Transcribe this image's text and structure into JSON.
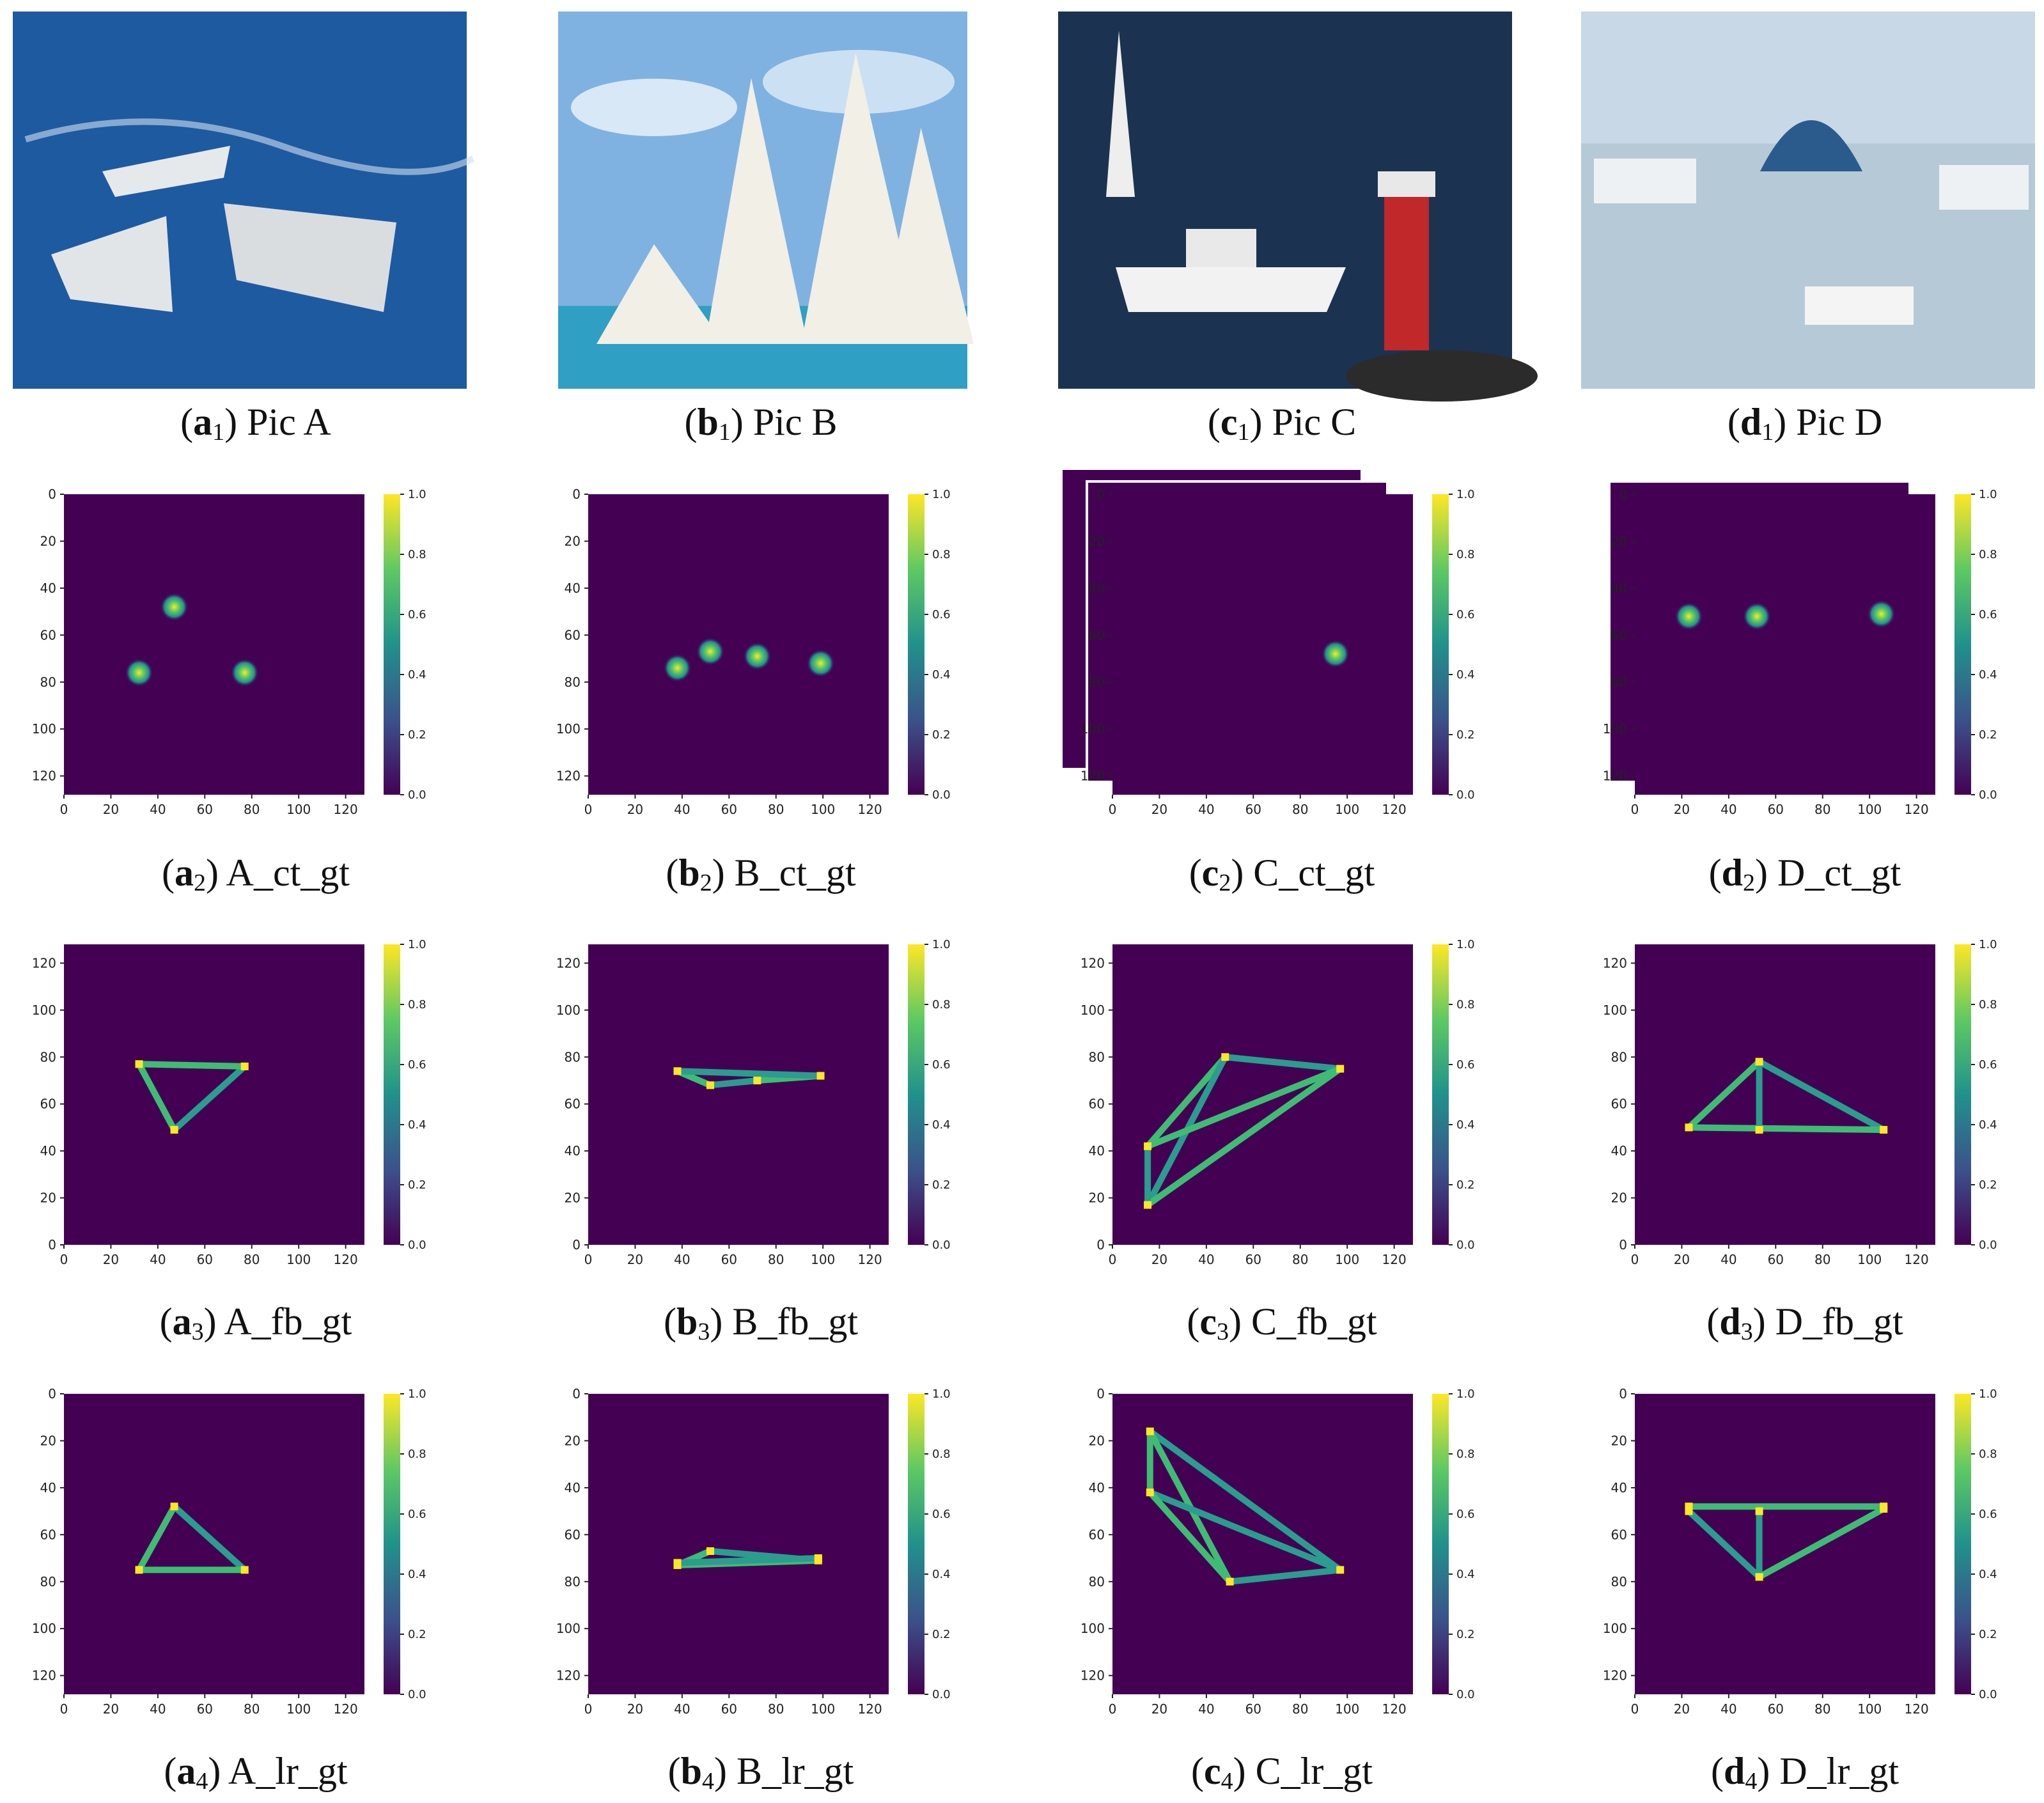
{
  "figure": {
    "columns": [
      "a",
      "b",
      "c",
      "d"
    ],
    "captions": [
      [
        {
          "letter": "a",
          "sub": "1",
          "text": "Pic A"
        },
        {
          "letter": "b",
          "sub": "1",
          "text": "Pic B"
        },
        {
          "letter": "c",
          "sub": "1",
          "text": "Pic C"
        },
        {
          "letter": "d",
          "sub": "1",
          "text": "Pic D"
        }
      ],
      [
        {
          "letter": "a",
          "sub": "2",
          "text": "A_ct_gt"
        },
        {
          "letter": "b",
          "sub": "2",
          "text": "B_ct_gt"
        },
        {
          "letter": "c",
          "sub": "2",
          "text": "C_ct_gt"
        },
        {
          "letter": "d",
          "sub": "2",
          "text": "D_ct_gt"
        }
      ],
      [
        {
          "letter": "a",
          "sub": "3",
          "text": "A_fb_gt"
        },
        {
          "letter": "b",
          "sub": "3",
          "text": "B_fb_gt"
        },
        {
          "letter": "c",
          "sub": "3",
          "text": "C_fb_gt"
        },
        {
          "letter": "d",
          "sub": "3",
          "text": "D_fb_gt"
        }
      ],
      [
        {
          "letter": "a",
          "sub": "4",
          "text": "A_lr_gt"
        },
        {
          "letter": "b",
          "sub": "4",
          "text": "B_lr_gt"
        },
        {
          "letter": "c",
          "sub": "4",
          "text": "C_lr_gt"
        },
        {
          "letter": "d",
          "sub": "4",
          "text": "D_lr_gt"
        }
      ]
    ],
    "photos": [
      {
        "scene": "warships",
        "sky": "#1a4f8a",
        "sea": "#1e5aa0"
      },
      {
        "scene": "sailboats",
        "sky": "#7fb2e0",
        "sea": "#2f9fc4"
      },
      {
        "scene": "lighthouse",
        "sky": "#17304f",
        "sea": "#1b3350"
      },
      {
        "scene": "harbor",
        "sky": "#c9d8e6",
        "sea": "#b6c9d6"
      }
    ],
    "colors": {
      "viridis_low": "#440154",
      "viridis_mid": "#21918c",
      "viridis_high": "#fde725"
    }
  },
  "chart_data": [
    {
      "type": "heatmap",
      "id": "A_ct_gt",
      "xlim": [
        0,
        128
      ],
      "ylim": [
        0,
        128
      ],
      "xticks": [
        "0",
        "20",
        "40",
        "60",
        "80",
        "100",
        "120"
      ],
      "yticks": [
        "0",
        "20",
        "40",
        "60",
        "80",
        "100",
        "120"
      ],
      "colorbar": [
        "0.0",
        "0.2",
        "0.4",
        "0.6",
        "0.8",
        "1.0"
      ],
      "points": [
        [
          47,
          48
        ],
        [
          32,
          76
        ],
        [
          77,
          76
        ]
      ]
    },
    {
      "type": "heatmap",
      "id": "B_ct_gt",
      "xlim": [
        0,
        128
      ],
      "ylim": [
        0,
        128
      ],
      "xticks": [
        "0",
        "20",
        "40",
        "60",
        "80",
        "100",
        "120"
      ],
      "yticks": [
        "0",
        "20",
        "40",
        "60",
        "80",
        "100",
        "120"
      ],
      "colorbar": [
        "0.0",
        "0.2",
        "0.4",
        "0.6",
        "0.8",
        "1.0"
      ],
      "points": [
        [
          38,
          74
        ],
        [
          52,
          67
        ],
        [
          72,
          69
        ],
        [
          99,
          72
        ]
      ]
    },
    {
      "type": "heatmap",
      "id": "C_ct_gt",
      "xlim": [
        0,
        128
      ],
      "ylim": [
        0,
        128
      ],
      "xticks": [
        "0",
        "20",
        "40",
        "60",
        "80",
        "100",
        "120"
      ],
      "yticks": [
        "0",
        "20",
        "40",
        "60",
        "80",
        "100",
        "120"
      ],
      "colorbar": [
        "0.0",
        "0.2",
        "0.4",
        "0.6",
        "0.8",
        "1.0"
      ],
      "points": [
        [
          95,
          68
        ]
      ],
      "stacked_layers": 2
    },
    {
      "type": "heatmap",
      "id": "D_ct_gt",
      "xlim": [
        0,
        128
      ],
      "ylim": [
        0,
        128
      ],
      "xticks": [
        "0",
        "20",
        "40",
        "60",
        "80",
        "100",
        "120"
      ],
      "yticks": [
        "0",
        "20",
        "40",
        "60",
        "80",
        "100",
        "120"
      ],
      "colorbar": [
        "0.0",
        "0.2",
        "0.4",
        "0.6",
        "0.8",
        "1.0"
      ],
      "points": [
        [
          23,
          52
        ],
        [
          52,
          52
        ],
        [
          105,
          51
        ]
      ],
      "stacked_layers": 1
    },
    {
      "type": "heatmap",
      "id": "A_fb_gt",
      "yinverted": true,
      "xlim": [
        0,
        128
      ],
      "ylim": [
        0,
        128
      ],
      "xticks": [
        "0",
        "20",
        "40",
        "60",
        "80",
        "100",
        "120"
      ],
      "yticks": [
        "0",
        "20",
        "40",
        "60",
        "80",
        "100",
        "120"
      ],
      "colorbar": [
        "0.0",
        "0.2",
        "0.4",
        "0.6",
        "0.8",
        "1.0"
      ],
      "segments": [
        [
          32,
          77,
          47,
          49
        ],
        [
          47,
          49,
          77,
          76
        ],
        [
          32,
          77,
          77,
          76
        ]
      ]
    },
    {
      "type": "heatmap",
      "id": "B_fb_gt",
      "yinverted": true,
      "xlim": [
        0,
        128
      ],
      "ylim": [
        0,
        128
      ],
      "xticks": [
        "0",
        "20",
        "40",
        "60",
        "80",
        "100",
        "120"
      ],
      "yticks": [
        "0",
        "20",
        "40",
        "60",
        "80",
        "100",
        "120"
      ],
      "colorbar": [
        "0.0",
        "0.2",
        "0.4",
        "0.6",
        "0.8",
        "1.0"
      ],
      "segments": [
        [
          38,
          74,
          52,
          68
        ],
        [
          52,
          68,
          72,
          70
        ],
        [
          72,
          70,
          99,
          72
        ],
        [
          38,
          74,
          99,
          72
        ]
      ]
    },
    {
      "type": "heatmap",
      "id": "C_fb_gt",
      "yinverted": true,
      "xlim": [
        0,
        128
      ],
      "ylim": [
        0,
        128
      ],
      "xticks": [
        "0",
        "20",
        "40",
        "60",
        "80",
        "100",
        "120"
      ],
      "yticks": [
        "0",
        "20",
        "40",
        "60",
        "80",
        "100",
        "120"
      ],
      "colorbar": [
        "0.0",
        "0.2",
        "0.4",
        "0.6",
        "0.8",
        "1.0"
      ],
      "segments": [
        [
          15,
          42,
          48,
          80
        ],
        [
          15,
          17,
          48,
          80
        ],
        [
          15,
          17,
          97,
          75
        ],
        [
          48,
          80,
          97,
          75
        ],
        [
          15,
          42,
          97,
          75
        ],
        [
          15,
          17,
          15,
          42
        ]
      ]
    },
    {
      "type": "heatmap",
      "id": "D_fb_gt",
      "yinverted": true,
      "xlim": [
        0,
        128
      ],
      "ylim": [
        0,
        128
      ],
      "xticks": [
        "0",
        "20",
        "40",
        "60",
        "80",
        "100",
        "120"
      ],
      "yticks": [
        "0",
        "20",
        "40",
        "60",
        "80",
        "100",
        "120"
      ],
      "colorbar": [
        "0.0",
        "0.2",
        "0.4",
        "0.6",
        "0.8",
        "1.0"
      ],
      "segments": [
        [
          23,
          50,
          53,
          78
        ],
        [
          53,
          78,
          106,
          49
        ],
        [
          23,
          50,
          106,
          49
        ],
        [
          53,
          49,
          53,
          78
        ]
      ]
    },
    {
      "type": "heatmap",
      "id": "A_lr_gt",
      "xlim": [
        0,
        128
      ],
      "ylim": [
        0,
        128
      ],
      "xticks": [
        "0",
        "20",
        "40",
        "60",
        "80",
        "100",
        "120"
      ],
      "yticks": [
        "0",
        "20",
        "40",
        "60",
        "80",
        "100",
        "120"
      ],
      "colorbar": [
        "0.0",
        "0.2",
        "0.4",
        "0.6",
        "0.8",
        "1.0"
      ],
      "segments": [
        [
          32,
          75,
          47,
          48
        ],
        [
          47,
          48,
          77,
          75
        ],
        [
          32,
          75,
          77,
          75
        ]
      ]
    },
    {
      "type": "heatmap",
      "id": "B_lr_gt",
      "xlim": [
        0,
        128
      ],
      "ylim": [
        0,
        128
      ],
      "xticks": [
        "0",
        "20",
        "40",
        "60",
        "80",
        "100",
        "120"
      ],
      "yticks": [
        "0",
        "20",
        "40",
        "60",
        "80",
        "100",
        "120"
      ],
      "colorbar": [
        "0.0",
        "0.2",
        "0.4",
        "0.6",
        "0.8",
        "1.0"
      ],
      "segments": [
        [
          38,
          73,
          52,
          67
        ],
        [
          52,
          67,
          98,
          71
        ],
        [
          38,
          73,
          98,
          71
        ],
        [
          38,
          72,
          98,
          70
        ]
      ]
    },
    {
      "type": "heatmap",
      "id": "C_lr_gt",
      "xlim": [
        0,
        128
      ],
      "ylim": [
        0,
        128
      ],
      "xticks": [
        "0",
        "20",
        "40",
        "60",
        "80",
        "100",
        "120"
      ],
      "yticks": [
        "0",
        "20",
        "40",
        "60",
        "80",
        "100",
        "120"
      ],
      "colorbar": [
        "0.0",
        "0.2",
        "0.4",
        "0.6",
        "0.8",
        "1.0"
      ],
      "segments": [
        [
          16,
          16,
          16,
          42
        ],
        [
          16,
          16,
          97,
          75
        ],
        [
          16,
          16,
          50,
          80
        ],
        [
          16,
          42,
          97,
          75
        ],
        [
          16,
          42,
          50,
          80
        ],
        [
          50,
          80,
          97,
          75
        ]
      ]
    },
    {
      "type": "heatmap",
      "id": "D_lr_gt",
      "xlim": [
        0,
        128
      ],
      "ylim": [
        0,
        128
      ],
      "xticks": [
        "0",
        "20",
        "40",
        "60",
        "80",
        "100",
        "120"
      ],
      "yticks": [
        "0",
        "20",
        "40",
        "60",
        "80",
        "100",
        "120"
      ],
      "colorbar": [
        "0.0",
        "0.2",
        "0.4",
        "0.6",
        "0.8",
        "1.0"
      ],
      "segments": [
        [
          23,
          48,
          106,
          48
        ],
        [
          23,
          50,
          53,
          78
        ],
        [
          53,
          78,
          106,
          49
        ],
        [
          53,
          50,
          53,
          78
        ]
      ]
    }
  ]
}
